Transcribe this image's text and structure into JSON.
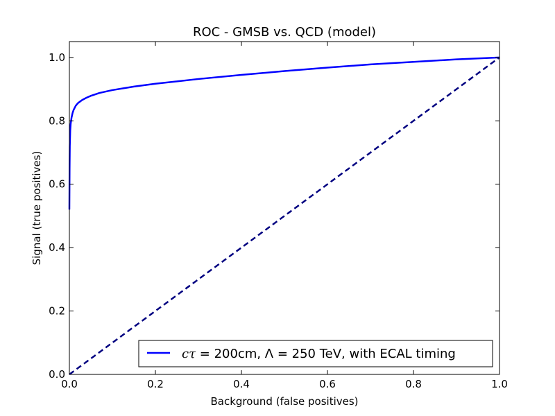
{
  "chart_data": {
    "type": "line",
    "title": "ROC - GMSB vs. QCD (model)",
    "xlabel": "Background (false positives)",
    "ylabel": "Signal (true positives)",
    "xlim": [
      0.0,
      1.0
    ],
    "ylim": [
      0.0,
      1.05
    ],
    "xticks": [
      0.0,
      0.2,
      0.4,
      0.6,
      0.8,
      1.0
    ],
    "yticks": [
      0.0,
      0.2,
      0.4,
      0.6,
      0.8,
      1.0
    ],
    "xtick_labels": [
      "0.0",
      "0.2",
      "0.4",
      "0.6",
      "0.8",
      "1.0"
    ],
    "ytick_labels": [
      "0.0",
      "0.2",
      "0.4",
      "0.6",
      "0.8",
      "1.0"
    ],
    "grid": false,
    "legend_placement": "lower-right",
    "series": [
      {
        "name": "cτ = 200cm, Λ = 250 TeV, with ECAL timing",
        "legend_math": "cτ",
        "legend_rest": " = 200cm, Λ = 250 TeV, with ECAL timing",
        "style": "solid",
        "color": "#0000ff",
        "x": [
          0.0,
          0.0005,
          0.001,
          0.002,
          0.003,
          0.005,
          0.0075,
          0.01,
          0.015,
          0.02,
          0.03,
          0.04,
          0.05,
          0.07,
          0.1,
          0.15,
          0.2,
          0.3,
          0.4,
          0.5,
          0.6,
          0.7,
          0.8,
          0.9,
          0.95,
          1.0
        ],
        "y": [
          0.52,
          0.65,
          0.72,
          0.77,
          0.79,
          0.81,
          0.825,
          0.835,
          0.848,
          0.856,
          0.866,
          0.873,
          0.879,
          0.888,
          0.897,
          0.908,
          0.917,
          0.932,
          0.945,
          0.957,
          0.968,
          0.978,
          0.986,
          0.994,
          0.997,
          1.0
        ]
      },
      {
        "name": "",
        "style": "dashed",
        "color": "#000080",
        "x": [
          0.0,
          1.0
        ],
        "y": [
          0.0,
          1.0
        ]
      }
    ]
  }
}
